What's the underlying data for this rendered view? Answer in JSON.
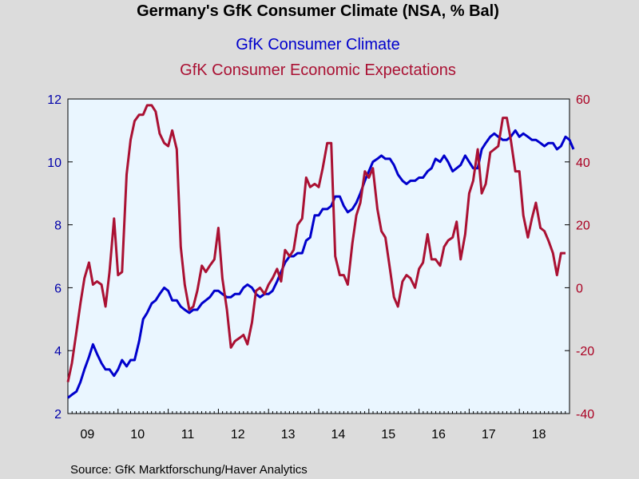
{
  "chart_data": {
    "type": "line",
    "title": "Germany's GfK Consumer Climate (NSA, % Bal)",
    "source": "Source:  GfK Marktforschung/Haver Analytics",
    "x_tick_labels": [
      "09",
      "10",
      "11",
      "12",
      "13",
      "14",
      "15",
      "16",
      "17",
      "18"
    ],
    "x_tick_values": [
      2009,
      2010,
      2011,
      2012,
      2013,
      2014,
      2015,
      2016,
      2017,
      2018
    ],
    "xlim": [
      2009.0,
      2019.0
    ],
    "y_left": {
      "lim": [
        2,
        12
      ],
      "ticks": [
        "2",
        "4",
        "6",
        "8",
        "10",
        "12"
      ],
      "tick_values": [
        2,
        4,
        6,
        8,
        10,
        12
      ],
      "color": "#0000aa"
    },
    "y_right": {
      "lim": [
        -40,
        60
      ],
      "ticks": [
        "-40",
        "-20",
        "0",
        "20",
        "40",
        "60"
      ],
      "tick_values": [
        -40,
        -20,
        0,
        20,
        40,
        60
      ],
      "color": "#aa0022"
    },
    "plot_background": "#eaf6ff",
    "series": [
      {
        "name": "GfK Consumer Climate",
        "axis": "left",
        "color": "#0000cc",
        "points": [
          [
            2009.0,
            2.5
          ],
          [
            2009.08,
            2.6
          ],
          [
            2009.17,
            2.7
          ],
          [
            2009.25,
            3.0
          ],
          [
            2009.33,
            3.4
          ],
          [
            2009.42,
            3.8
          ],
          [
            2009.5,
            4.2
          ],
          [
            2009.58,
            3.9
          ],
          [
            2009.67,
            3.6
          ],
          [
            2009.75,
            3.4
          ],
          [
            2009.83,
            3.4
          ],
          [
            2009.92,
            3.2
          ],
          [
            2010.0,
            3.4
          ],
          [
            2010.08,
            3.7
          ],
          [
            2010.17,
            3.5
          ],
          [
            2010.25,
            3.7
          ],
          [
            2010.33,
            3.7
          ],
          [
            2010.42,
            4.3
          ],
          [
            2010.5,
            5.0
          ],
          [
            2010.58,
            5.2
          ],
          [
            2010.67,
            5.5
          ],
          [
            2010.75,
            5.6
          ],
          [
            2010.83,
            5.8
          ],
          [
            2010.92,
            6.0
          ],
          [
            2011.0,
            5.9
          ],
          [
            2011.08,
            5.6
          ],
          [
            2011.17,
            5.6
          ],
          [
            2011.25,
            5.4
          ],
          [
            2011.33,
            5.3
          ],
          [
            2011.42,
            5.2
          ],
          [
            2011.5,
            5.3
          ],
          [
            2011.58,
            5.3
          ],
          [
            2011.67,
            5.5
          ],
          [
            2011.75,
            5.6
          ],
          [
            2011.83,
            5.7
          ],
          [
            2011.92,
            5.9
          ],
          [
            2012.0,
            5.9
          ],
          [
            2012.08,
            5.8
          ],
          [
            2012.17,
            5.7
          ],
          [
            2012.25,
            5.7
          ],
          [
            2012.33,
            5.8
          ],
          [
            2012.42,
            5.8
          ],
          [
            2012.5,
            6.0
          ],
          [
            2012.58,
            6.1
          ],
          [
            2012.67,
            6.0
          ],
          [
            2012.75,
            5.8
          ],
          [
            2012.83,
            5.7
          ],
          [
            2012.92,
            5.8
          ],
          [
            2013.0,
            5.8
          ],
          [
            2013.08,
            5.9
          ],
          [
            2013.17,
            6.2
          ],
          [
            2013.25,
            6.5
          ],
          [
            2013.33,
            6.8
          ],
          [
            2013.42,
            7.0
          ],
          [
            2013.5,
            7.0
          ],
          [
            2013.58,
            7.1
          ],
          [
            2013.67,
            7.1
          ],
          [
            2013.75,
            7.5
          ],
          [
            2013.83,
            7.6
          ],
          [
            2013.92,
            8.3
          ],
          [
            2014.0,
            8.3
          ],
          [
            2014.08,
            8.5
          ],
          [
            2014.17,
            8.5
          ],
          [
            2014.25,
            8.6
          ],
          [
            2014.33,
            8.9
          ],
          [
            2014.42,
            8.9
          ],
          [
            2014.5,
            8.6
          ],
          [
            2014.58,
            8.4
          ],
          [
            2014.67,
            8.5
          ],
          [
            2014.75,
            8.7
          ],
          [
            2014.83,
            9.0
          ],
          [
            2014.92,
            9.4
          ],
          [
            2015.0,
            9.7
          ],
          [
            2015.08,
            10.0
          ],
          [
            2015.17,
            10.1
          ],
          [
            2015.25,
            10.2
          ],
          [
            2015.33,
            10.1
          ],
          [
            2015.42,
            10.1
          ],
          [
            2015.5,
            9.9
          ],
          [
            2015.58,
            9.6
          ],
          [
            2015.67,
            9.4
          ],
          [
            2015.75,
            9.3
          ],
          [
            2015.83,
            9.4
          ],
          [
            2015.92,
            9.4
          ],
          [
            2016.0,
            9.5
          ],
          [
            2016.08,
            9.5
          ],
          [
            2016.17,
            9.7
          ],
          [
            2016.25,
            9.8
          ],
          [
            2016.33,
            10.1
          ],
          [
            2016.42,
            10.0
          ],
          [
            2016.5,
            10.2
          ],
          [
            2016.58,
            10.0
          ],
          [
            2016.67,
            9.7
          ],
          [
            2016.75,
            9.8
          ],
          [
            2016.83,
            9.9
          ],
          [
            2016.92,
            10.2
          ],
          [
            2017.0,
            10.0
          ],
          [
            2017.08,
            9.8
          ],
          [
            2017.17,
            9.8
          ],
          [
            2017.25,
            10.4
          ],
          [
            2017.33,
            10.6
          ],
          [
            2017.42,
            10.8
          ],
          [
            2017.5,
            10.9
          ],
          [
            2017.58,
            10.8
          ],
          [
            2017.67,
            10.7
          ],
          [
            2017.75,
            10.7
          ],
          [
            2017.83,
            10.8
          ],
          [
            2017.92,
            11.0
          ],
          [
            2018.0,
            10.8
          ],
          [
            2018.08,
            10.9
          ],
          [
            2018.17,
            10.8
          ],
          [
            2018.25,
            10.7
          ],
          [
            2018.33,
            10.7
          ],
          [
            2018.42,
            10.6
          ],
          [
            2018.5,
            10.5
          ],
          [
            2018.58,
            10.6
          ],
          [
            2018.67,
            10.6
          ],
          [
            2018.75,
            10.4
          ],
          [
            2018.83,
            10.5
          ],
          [
            2018.92,
            10.8
          ],
          [
            2019.0,
            10.7
          ],
          [
            2019.08,
            10.4
          ]
        ]
      },
      {
        "name": "GfK Consumer Economic Expectations",
        "axis": "right",
        "color": "#aa1133",
        "points": [
          [
            2009.0,
            -30
          ],
          [
            2009.08,
            -24
          ],
          [
            2009.17,
            -14
          ],
          [
            2009.25,
            -5
          ],
          [
            2009.33,
            3
          ],
          [
            2009.42,
            8
          ],
          [
            2009.5,
            1
          ],
          [
            2009.58,
            2
          ],
          [
            2009.67,
            1
          ],
          [
            2009.75,
            -6
          ],
          [
            2009.83,
            5
          ],
          [
            2009.92,
            22
          ],
          [
            2010.0,
            4
          ],
          [
            2010.08,
            5
          ],
          [
            2010.17,
            36
          ],
          [
            2010.25,
            47
          ],
          [
            2010.33,
            53
          ],
          [
            2010.42,
            55
          ],
          [
            2010.5,
            55
          ],
          [
            2010.58,
            58
          ],
          [
            2010.67,
            58
          ],
          [
            2010.75,
            56
          ],
          [
            2010.83,
            49
          ],
          [
            2010.92,
            46
          ],
          [
            2011.0,
            45
          ],
          [
            2011.08,
            50
          ],
          [
            2011.17,
            44
          ],
          [
            2011.25,
            13
          ],
          [
            2011.33,
            1
          ],
          [
            2011.42,
            -7
          ],
          [
            2011.5,
            -6
          ],
          [
            2011.58,
            -1
          ],
          [
            2011.67,
            7
          ],
          [
            2011.75,
            5
          ],
          [
            2011.83,
            7
          ],
          [
            2011.92,
            9
          ],
          [
            2012.0,
            19
          ],
          [
            2012.08,
            3
          ],
          [
            2012.17,
            -7
          ],
          [
            2012.25,
            -19
          ],
          [
            2012.33,
            -17
          ],
          [
            2012.42,
            -16
          ],
          [
            2012.5,
            -15
          ],
          [
            2012.58,
            -18
          ],
          [
            2012.67,
            -11
          ],
          [
            2012.75,
            -1
          ],
          [
            2012.83,
            0
          ],
          [
            2012.92,
            -2
          ],
          [
            2013.0,
            1
          ],
          [
            2013.08,
            3
          ],
          [
            2013.17,
            6
          ],
          [
            2013.25,
            2
          ],
          [
            2013.33,
            12
          ],
          [
            2013.42,
            10
          ],
          [
            2013.5,
            12
          ],
          [
            2013.58,
            20
          ],
          [
            2013.67,
            22
          ],
          [
            2013.75,
            35
          ],
          [
            2013.83,
            32
          ],
          [
            2013.92,
            33
          ],
          [
            2014.0,
            32
          ],
          [
            2014.08,
            38
          ],
          [
            2014.17,
            46
          ],
          [
            2014.25,
            46
          ],
          [
            2014.33,
            10
          ],
          [
            2014.42,
            4
          ],
          [
            2014.5,
            4
          ],
          [
            2014.58,
            1
          ],
          [
            2014.67,
            14
          ],
          [
            2014.75,
            23
          ],
          [
            2014.83,
            27
          ],
          [
            2014.92,
            37
          ],
          [
            2015.0,
            35
          ],
          [
            2015.08,
            38
          ],
          [
            2015.17,
            25
          ],
          [
            2015.25,
            18
          ],
          [
            2015.33,
            16
          ],
          [
            2015.42,
            6
          ],
          [
            2015.5,
            -3
          ],
          [
            2015.58,
            -6
          ],
          [
            2015.67,
            2
          ],
          [
            2015.75,
            4
          ],
          [
            2015.83,
            3
          ],
          [
            2015.92,
            0
          ],
          [
            2016.0,
            6
          ],
          [
            2016.08,
            8
          ],
          [
            2016.17,
            17
          ],
          [
            2016.25,
            9
          ],
          [
            2016.33,
            9
          ],
          [
            2016.42,
            7
          ],
          [
            2016.5,
            13
          ],
          [
            2016.58,
            15
          ],
          [
            2016.67,
            16
          ],
          [
            2016.75,
            21
          ],
          [
            2016.83,
            9
          ],
          [
            2016.92,
            17
          ],
          [
            2017.0,
            30
          ],
          [
            2017.08,
            34
          ],
          [
            2017.17,
            44
          ],
          [
            2017.25,
            30
          ],
          [
            2017.33,
            33
          ],
          [
            2017.42,
            43
          ],
          [
            2017.5,
            44
          ],
          [
            2017.58,
            45
          ],
          [
            2017.67,
            54
          ],
          [
            2017.75,
            54
          ],
          [
            2017.83,
            47
          ],
          [
            2017.92,
            37
          ],
          [
            2018.0,
            37
          ],
          [
            2018.08,
            23
          ],
          [
            2018.17,
            16
          ],
          [
            2018.25,
            22
          ],
          [
            2018.33,
            27
          ],
          [
            2018.42,
            19
          ],
          [
            2018.5,
            18
          ],
          [
            2018.58,
            15
          ],
          [
            2018.67,
            11
          ],
          [
            2018.75,
            4
          ],
          [
            2018.83,
            11
          ],
          [
            2018.92,
            11
          ]
        ]
      }
    ]
  }
}
